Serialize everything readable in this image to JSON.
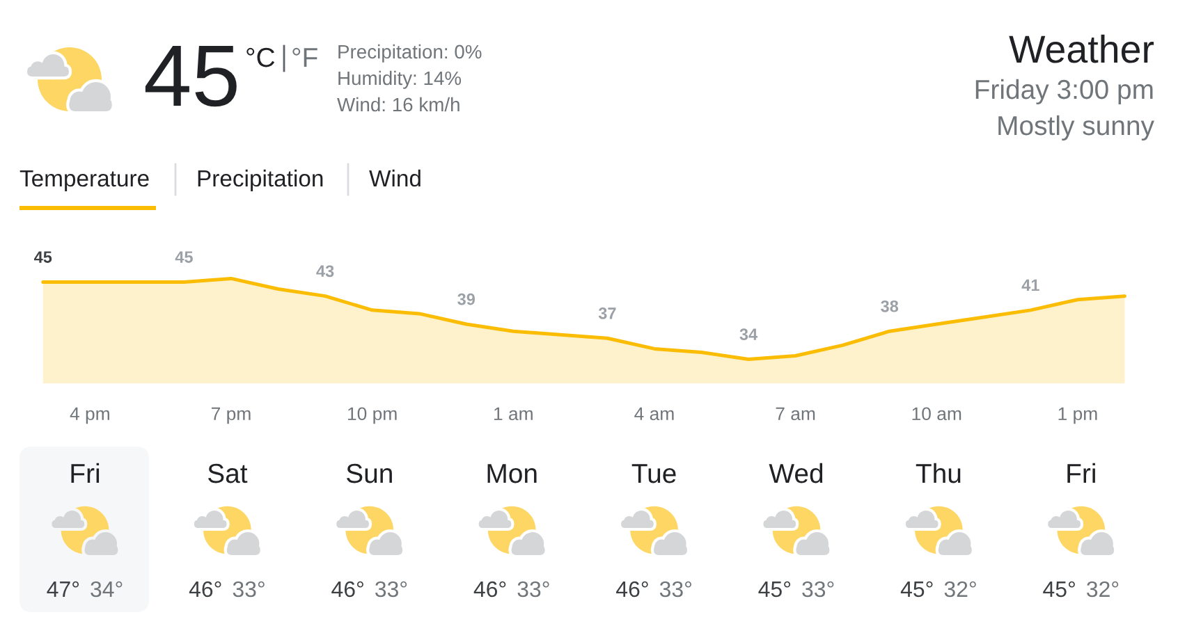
{
  "chart_data": [
    {
      "type": "other",
      "title": "Weather",
      "subtitle": "Friday 3:00 pm",
      "annotations": [
        "45",
        "°C",
        "°F",
        "Precipitation: 0%",
        "Humidity: 14%",
        "Wind: 16 km/h",
        "Mostly sunny",
        "Temperature",
        "Precipitation",
        "Wind"
      ]
    },
    {
      "type": "area",
      "color": "#fbbc04",
      "tick_labels": "x",
      "categories": [
        null,
        "4 pm",
        null,
        null,
        "7 pm",
        null,
        null,
        "10 pm",
        null,
        null,
        "1 am",
        null,
        null,
        "4 am",
        null,
        null,
        "7 am",
        null,
        null,
        "10 am",
        null,
        null,
        "1 pm",
        null
      ],
      "values": [
        45,
        45,
        45,
        45,
        45.5,
        44,
        43,
        41,
        40.5,
        39,
        38,
        37.5,
        37,
        35.5,
        35,
        34,
        34.5,
        36,
        38,
        39,
        40,
        41,
        42.5,
        43
      ],
      "value_labels": [
        "45",
        null,
        null,
        "45",
        null,
        null,
        "43",
        null,
        null,
        "39",
        null,
        null,
        "37",
        null,
        null,
        "34",
        null,
        null,
        "38",
        null,
        null,
        "41",
        null,
        null
      ]
    },
    {
      "type": "other",
      "categories": [
        "Fri",
        "Sat",
        "Sun",
        "Mon",
        "Tue",
        "Wed",
        "Thu",
        "Fri"
      ],
      "annotations": [
        "47°",
        "34°",
        "46°",
        "33°",
        "46°",
        "33°",
        "46°",
        "33°",
        "46°",
        "33°",
        "45°",
        "33°",
        "45°",
        "32°",
        "45°",
        "32°"
      ]
    }
  ]
}
